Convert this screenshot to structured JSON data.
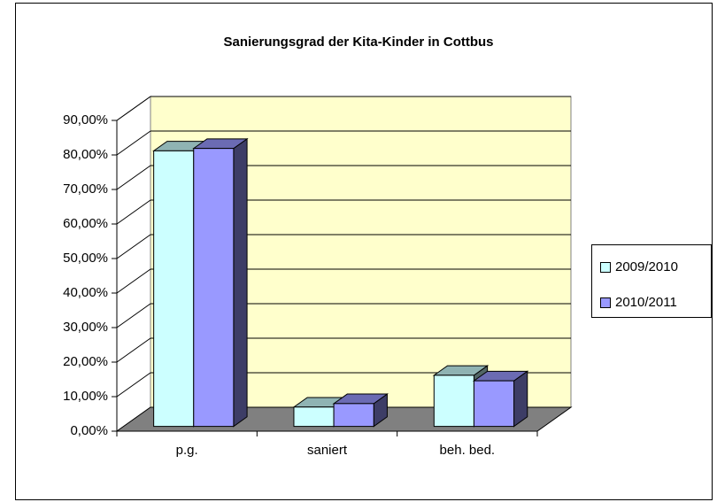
{
  "chart_data": {
    "type": "bar",
    "title": "Sanierungsgrad der Kita-Kinder in Cottbus",
    "categories": [
      "p.g.",
      "saniert",
      "beh. bed."
    ],
    "series": [
      {
        "name": "2009/2010",
        "color": "#ccffff",
        "values": [
          79.8,
          5.6,
          14.8
        ]
      },
      {
        "name": "2010/2011",
        "color": "#9999ff",
        "values": [
          80.5,
          6.6,
          13.2
        ]
      }
    ],
    "ylim": [
      0,
      90
    ],
    "yticks": [
      {
        "value": 0,
        "label": "0,00%"
      },
      {
        "value": 10,
        "label": "10,00%"
      },
      {
        "value": 20,
        "label": "20,00%"
      },
      {
        "value": 30,
        "label": "30,00%"
      },
      {
        "value": 40,
        "label": "40,00%"
      },
      {
        "value": 50,
        "label": "50,00%"
      },
      {
        "value": 60,
        "label": "60,00%"
      },
      {
        "value": 70,
        "label": "70,00%"
      },
      {
        "value": 80,
        "label": "80,00%"
      },
      {
        "value": 90,
        "label": "90,00%"
      }
    ],
    "grid": true,
    "legend": "right",
    "wall_color": "#ffffcc",
    "floor_color": "#808080"
  }
}
